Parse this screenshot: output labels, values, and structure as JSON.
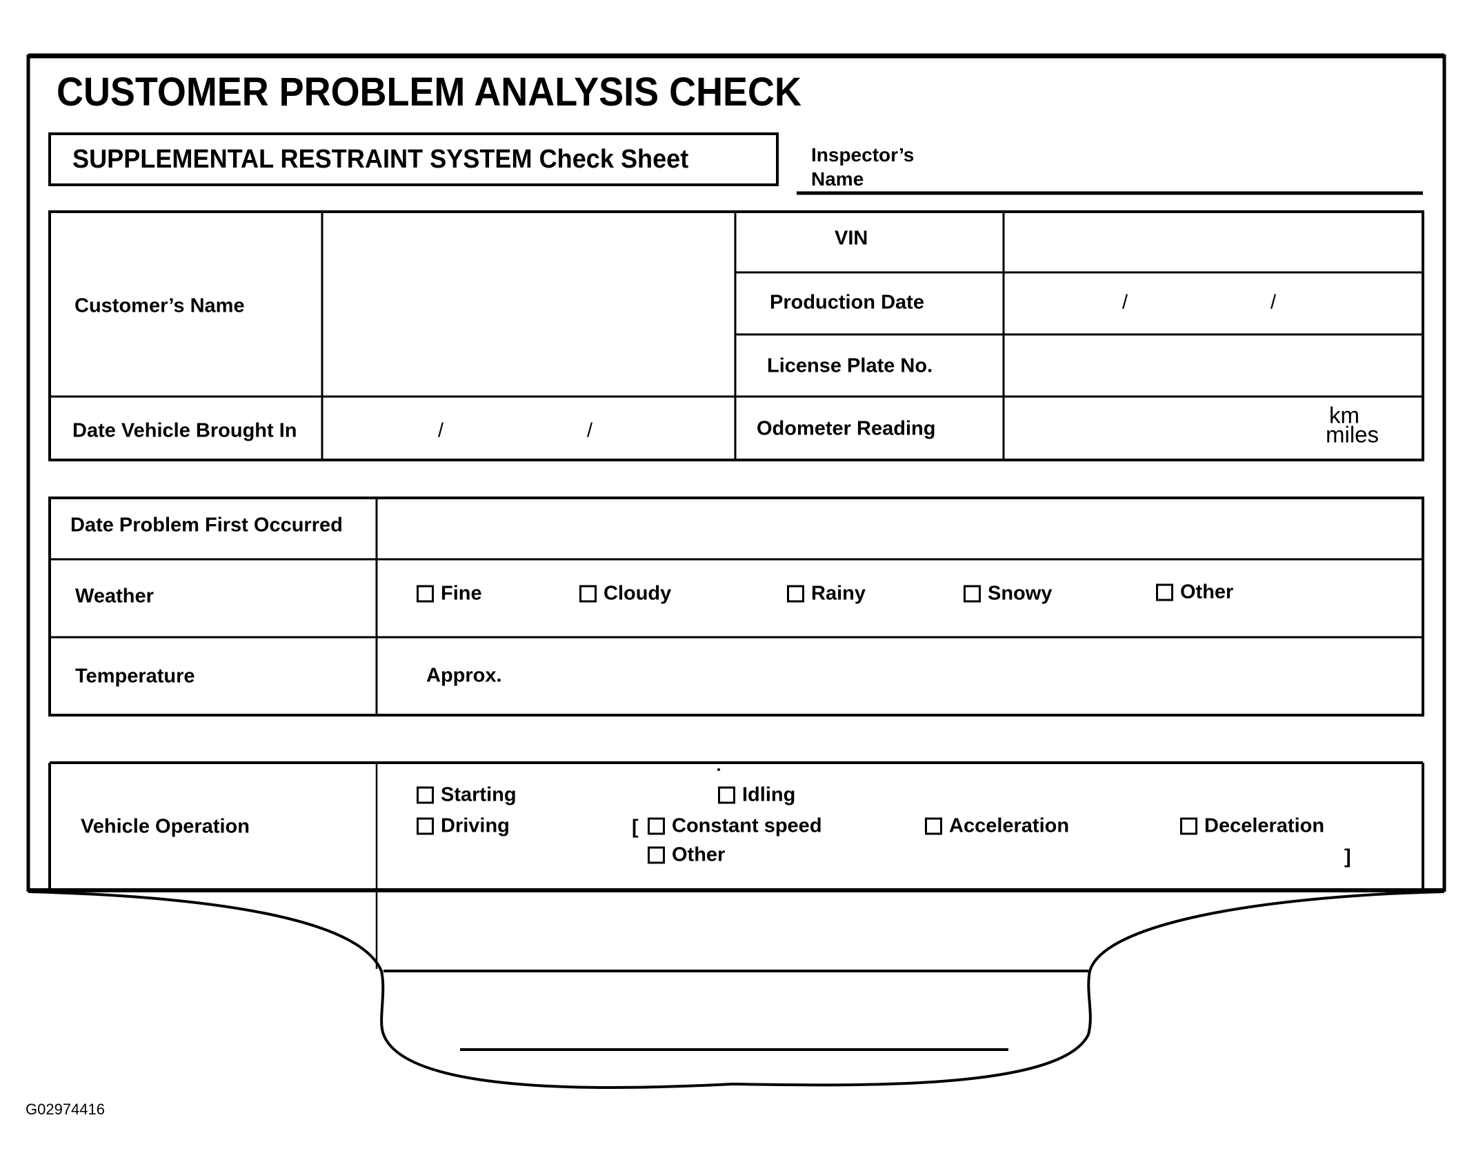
{
  "title": "CUSTOMER PROBLEM ANALYSIS CHECK",
  "subtitle": "SUPPLEMENTAL RESTRAINT SYSTEM Check Sheet",
  "inspector": {
    "line1": "Inspector’s",
    "line2": "Name"
  },
  "vehicle_info": {
    "customer_name": "Customer’s Name",
    "date_brought_in": "Date Vehicle Brought In",
    "date_separator": "/",
    "vin": "VIN",
    "production_date": "Production Date",
    "license_plate": "License Plate No.",
    "odometer": "Odometer Reading",
    "unit_km": "km",
    "unit_miles": "miles"
  },
  "conditions": {
    "date_first_occurred": "Date Problem First Occurred",
    "weather_label": "Weather",
    "weather_options": [
      "Fine",
      "Cloudy",
      "Rainy",
      "Snowy",
      "Other"
    ],
    "temperature_label": "Temperature",
    "temperature_prefix": "Approx."
  },
  "operation": {
    "label": "Vehicle Operation",
    "options": [
      "Starting",
      "Idling",
      "Driving",
      "Constant speed",
      "Acceleration",
      "Deceleration",
      "Other"
    ],
    "bracket_open": "[",
    "bracket_close": "]"
  },
  "figure_code": "G02974416"
}
